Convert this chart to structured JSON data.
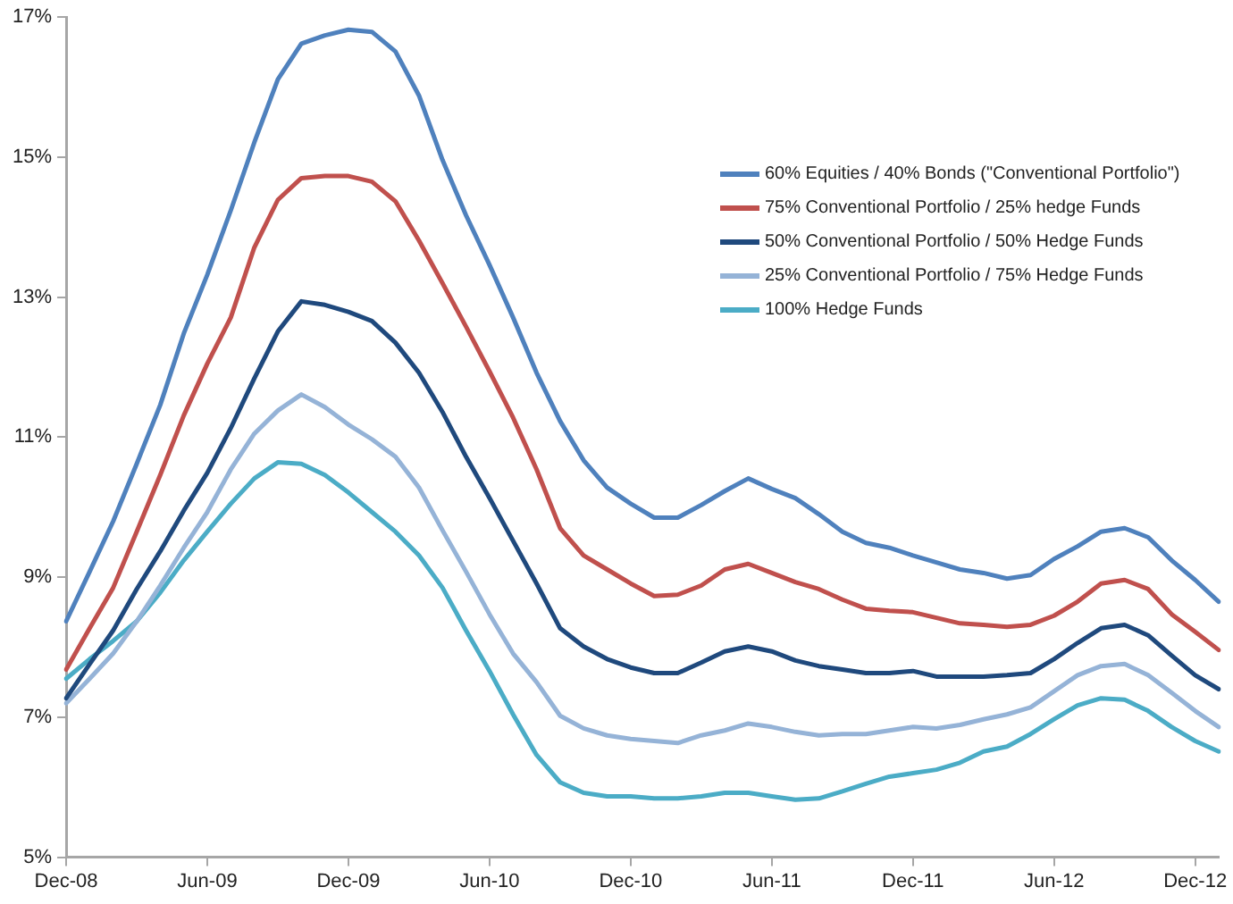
{
  "chart_data": {
    "type": "line",
    "categories": [
      "Dec-08",
      null,
      null,
      null,
      null,
      null,
      "Jun-09",
      null,
      null,
      null,
      null,
      null,
      "Dec-09",
      null,
      null,
      null,
      null,
      null,
      "Jun-10",
      null,
      null,
      null,
      null,
      null,
      "Dec-10",
      null,
      null,
      null,
      null,
      null,
      "Jun-11",
      null,
      null,
      null,
      null,
      null,
      "Dec-11",
      null,
      null,
      null,
      null,
      null,
      "Jun-12",
      null,
      null,
      null,
      null,
      null,
      "Dec-12",
      null
    ],
    "series": [
      {
        "name": "60% Equities / 40% Bonds (\"Conventional Portfolio\")",
        "color": "#4f81bd",
        "values": [
          8.37,
          9.08,
          9.8,
          10.62,
          11.46,
          12.48,
          13.32,
          14.24,
          15.21,
          16.11,
          16.62,
          16.74,
          16.82,
          16.79,
          16.51,
          15.88,
          14.96,
          14.17,
          13.46,
          12.71,
          11.92,
          11.23,
          10.67,
          10.28,
          10.05,
          9.85,
          9.85,
          10.03,
          10.23,
          10.41,
          10.26,
          10.13,
          9.9,
          9.65,
          9.49,
          9.42,
          9.31,
          9.21,
          9.11,
          9.06,
          8.98,
          9.03,
          9.26,
          9.44,
          9.65,
          9.7,
          9.57,
          9.24,
          8.96,
          8.65
        ]
      },
      {
        "name": "75% Conventional Portfolio / 25% hedge Funds",
        "color": "#c0504d",
        "values": [
          7.68,
          8.27,
          8.85,
          9.65,
          10.46,
          11.31,
          12.05,
          12.71,
          13.71,
          14.39,
          14.7,
          14.73,
          14.73,
          14.65,
          14.37,
          13.81,
          13.2,
          12.58,
          11.94,
          11.28,
          10.54,
          9.7,
          9.31,
          9.11,
          8.91,
          8.73,
          8.75,
          8.88,
          9.11,
          9.19,
          9.06,
          8.93,
          8.83,
          8.68,
          8.55,
          8.52,
          8.5,
          8.42,
          8.34,
          8.32,
          8.29,
          8.32,
          8.45,
          8.65,
          8.91,
          8.96,
          8.83,
          8.47,
          8.22,
          7.96
        ]
      },
      {
        "name": "50% Conventional Portfolio / 50% Hedge Funds",
        "color": "#1f497d",
        "values": [
          7.27,
          7.76,
          8.24,
          8.83,
          9.37,
          9.95,
          10.49,
          11.13,
          11.84,
          12.51,
          12.94,
          12.89,
          12.79,
          12.66,
          12.35,
          11.92,
          11.36,
          10.72,
          10.13,
          9.52,
          8.91,
          8.27,
          8.01,
          7.83,
          7.71,
          7.63,
          7.63,
          7.78,
          7.94,
          8.01,
          7.94,
          7.81,
          7.73,
          7.68,
          7.63,
          7.63,
          7.66,
          7.58,
          7.58,
          7.58,
          7.6,
          7.63,
          7.83,
          8.06,
          8.27,
          8.32,
          8.17,
          7.88,
          7.6,
          7.4
        ]
      },
      {
        "name": "25% Conventional Portfolio / 75% Hedge Funds",
        "color": "#95b3d7",
        "values": [
          7.2,
          7.55,
          7.91,
          8.37,
          8.88,
          9.42,
          9.93,
          10.54,
          11.05,
          11.38,
          11.61,
          11.43,
          11.18,
          10.97,
          10.72,
          10.28,
          9.67,
          9.08,
          8.47,
          7.91,
          7.5,
          7.02,
          6.84,
          6.74,
          6.69,
          6.66,
          6.63,
          6.74,
          6.81,
          6.91,
          6.86,
          6.79,
          6.74,
          6.76,
          6.76,
          6.81,
          6.86,
          6.84,
          6.89,
          6.97,
          7.04,
          7.14,
          7.37,
          7.6,
          7.73,
          7.76,
          7.6,
          7.35,
          7.09,
          6.86
        ]
      },
      {
        "name": "100% Hedge Funds",
        "color": "#4bacc6",
        "values": [
          7.55,
          7.83,
          8.09,
          8.37,
          8.78,
          9.24,
          9.65,
          10.05,
          10.41,
          10.64,
          10.62,
          10.46,
          10.21,
          9.93,
          9.65,
          9.31,
          8.85,
          8.24,
          7.66,
          7.04,
          6.46,
          6.07,
          5.92,
          5.87,
          5.87,
          5.84,
          5.84,
          5.87,
          5.92,
          5.92,
          5.87,
          5.82,
          5.84,
          5.94,
          6.05,
          6.15,
          6.2,
          6.25,
          6.35,
          6.51,
          6.58,
          6.76,
          6.97,
          7.17,
          7.27,
          7.25,
          7.09,
          6.86,
          6.66,
          6.51
        ]
      }
    ],
    "ylim": [
      5,
      17
    ],
    "yticks": [
      {
        "value": 5,
        "label": "5%"
      },
      {
        "value": 7,
        "label": "7%"
      },
      {
        "value": 9,
        "label": "9%"
      },
      {
        "value": 11,
        "label": "11%"
      },
      {
        "value": 13,
        "label": "13%"
      },
      {
        "value": 15,
        "label": "15%"
      },
      {
        "value": 17,
        "label": "17%"
      }
    ],
    "legend": "right",
    "marker": "none",
    "line_style": "solid"
  }
}
